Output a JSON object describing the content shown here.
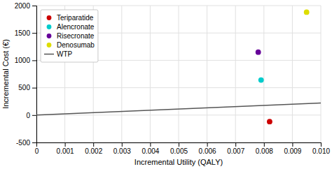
{
  "chart_data": {
    "type": "scatter",
    "xlabel": "Incremental Utility (QALY)",
    "ylabel": "Incremental Cost (€)",
    "xlim": [
      0,
      0.01
    ],
    "ylim": [
      -500,
      2000
    ],
    "xticks": [
      0,
      0.001,
      0.002,
      0.003,
      0.004,
      0.005,
      0.006,
      0.007,
      0.008,
      0.009,
      {
        "value": 0.01,
        "label": "0.010"
      }
    ],
    "yticks": [
      -500,
      0,
      500,
      1000,
      1500,
      2000
    ],
    "grid": true,
    "legend": "upper left",
    "series": [
      {
        "name": "Teriparatide",
        "type": "scatter",
        "marker": "circle",
        "color": "#cc0000",
        "x": [
          0.0082
        ],
        "values": [
          -120
        ]
      },
      {
        "name": "Alencronate",
        "type": "scatter",
        "marker": "circle",
        "color": "#00cccc",
        "x": [
          0.0079
        ],
        "values": [
          640
        ]
      },
      {
        "name": "Risecronate",
        "type": "scatter",
        "marker": "circle",
        "color": "#660099",
        "x": [
          0.0078
        ],
        "values": [
          1150
        ]
      },
      {
        "name": "Denosumab",
        "type": "scatter",
        "marker": "circle",
        "color": "#dddd00",
        "x": [
          0.0095
        ],
        "values": [
          1880
        ]
      },
      {
        "name": "WTP",
        "type": "line",
        "line_style": "solid",
        "color": "#555555",
        "x": [
          0,
          0.01
        ],
        "values": [
          0,
          220
        ]
      }
    ]
  }
}
